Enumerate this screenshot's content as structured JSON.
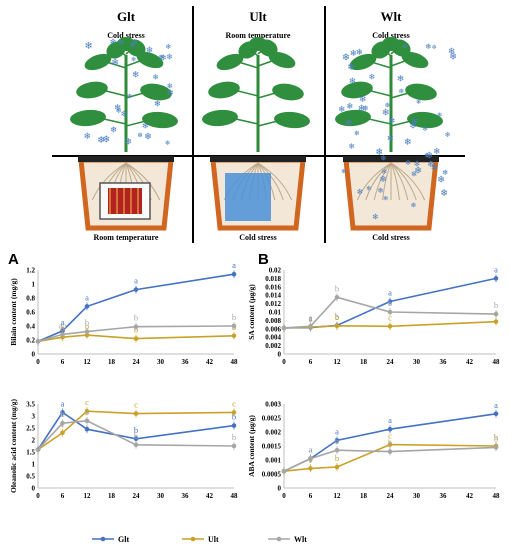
{
  "illustration": {
    "panels": [
      {
        "title": "Glt",
        "top_label": "Cold stress",
        "bottom_label": "Room temperature"
      },
      {
        "title": "Ult",
        "top_label": "Room temperature",
        "bottom_label": "Cold stress"
      },
      {
        "title": "Wlt",
        "top_label": "Cold stress",
        "bottom_label": "Cold stress"
      }
    ]
  },
  "section_labels": {
    "a": "A",
    "b": "B"
  },
  "legend": {
    "items": [
      "Glt",
      "Ult",
      "Wlt"
    ]
  },
  "colors": {
    "Glt": "#4472c4",
    "Ult": "#c9a227",
    "Wlt": "#a6a6a6"
  },
  "chart_data": [
    {
      "type": "line",
      "ylabel": "Bilain content (mg/g)",
      "x": [
        0,
        6,
        12,
        24,
        48
      ],
      "xticks": [
        "0",
        "6",
        "12",
        "18",
        "24",
        "30",
        "36",
        "42",
        "48"
      ],
      "xlim": [
        0,
        48
      ],
      "yticks": [
        "0",
        "0.2",
        "0.4",
        "0.6",
        "0.8",
        "1",
        "1.2"
      ],
      "ylim": [
        0,
        1.2
      ],
      "series": [
        {
          "name": "Glt",
          "values": [
            0.18,
            0.33,
            0.68,
            0.92,
            1.14
          ],
          "letters": [
            "",
            "a",
            "a",
            "a",
            "a"
          ]
        },
        {
          "name": "Ult",
          "values": [
            0.18,
            0.24,
            0.27,
            0.22,
            0.26
          ],
          "letters": [
            "",
            "b",
            "b",
            "b",
            "b"
          ]
        },
        {
          "name": "Wlt",
          "values": [
            0.18,
            0.28,
            0.32,
            0.39,
            0.4
          ],
          "letters": [
            "",
            "ab",
            "b",
            "b",
            "b"
          ]
        }
      ]
    },
    {
      "type": "line",
      "ylabel": "SA content (µg/g)",
      "x": [
        0,
        6,
        12,
        24,
        48
      ],
      "xticks": [
        "0",
        "6",
        "12",
        "18",
        "24",
        "30",
        "36",
        "42",
        "48"
      ],
      "xlim": [
        0,
        48
      ],
      "yticks": [
        "0",
        "0.002",
        "0.004",
        "0.006",
        "0.008",
        "0.01",
        "0.012",
        "0.014",
        "0.016",
        "0.018",
        "0.02"
      ],
      "ylim": [
        0,
        0.02
      ],
      "series": [
        {
          "name": "Glt",
          "values": [
            0.0062,
            0.0063,
            0.0068,
            0.0125,
            0.018
          ],
          "letters": [
            "",
            "a",
            "b",
            "a",
            "a"
          ]
        },
        {
          "name": "Ult",
          "values": [
            0.0062,
            0.0064,
            0.0067,
            0.0066,
            0.0077
          ],
          "letters": [
            "",
            "a",
            "b",
            "c",
            "c"
          ]
        },
        {
          "name": "Wlt",
          "values": [
            0.0062,
            0.0066,
            0.0135,
            0.01,
            0.0095
          ],
          "letters": [
            "",
            "a",
            "b",
            "b",
            "b"
          ]
        }
      ]
    },
    {
      "type": "line",
      "ylabel": "Oleanolic acid content (mg/g)",
      "x": [
        0,
        6,
        12,
        24,
        48
      ],
      "xticks": [
        "0",
        "6",
        "12",
        "18",
        "24",
        "30",
        "36",
        "42",
        "48"
      ],
      "xlim": [
        0,
        48
      ],
      "yticks": [
        "0",
        "0.5",
        "1",
        "1.5",
        "2",
        "2.5",
        "3",
        "3.5"
      ],
      "ylim": [
        0,
        3.5
      ],
      "series": [
        {
          "name": "Glt",
          "values": [
            1.6,
            3.15,
            2.45,
            2.05,
            2.6
          ],
          "letters": [
            "",
            "a",
            "a",
            "b",
            "b"
          ]
        },
        {
          "name": "Ult",
          "values": [
            1.6,
            2.3,
            3.2,
            3.1,
            3.15
          ],
          "letters": [
            "",
            "c",
            "c",
            "c",
            "c"
          ]
        },
        {
          "name": "Wlt",
          "values": [
            1.6,
            2.7,
            2.8,
            1.8,
            1.75
          ],
          "letters": [
            "",
            "b",
            "b",
            "b",
            "b"
          ]
        }
      ]
    },
    {
      "type": "line",
      "ylabel": "ABA content (µg/g)",
      "x": [
        0,
        6,
        12,
        24,
        48
      ],
      "xticks": [
        "0",
        "6",
        "12",
        "18",
        "24",
        "30",
        "36",
        "42",
        "48"
      ],
      "xlim": [
        0,
        48
      ],
      "yticks": [
        "0",
        "0.0005",
        "0.001",
        "0.0015",
        "0.002",
        "0.0025",
        "0.003"
      ],
      "ylim": [
        0,
        0.003
      ],
      "series": [
        {
          "name": "Glt",
          "values": [
            0.0006,
            0.00105,
            0.0017,
            0.0021,
            0.00265
          ],
          "letters": [
            "",
            "a",
            "a",
            "a",
            "a"
          ]
        },
        {
          "name": "Ult",
          "values": [
            0.0006,
            0.0007,
            0.00075,
            0.00155,
            0.0015
          ],
          "letters": [
            "",
            "b",
            "b",
            "c",
            "b"
          ]
        },
        {
          "name": "Wlt",
          "values": [
            0.0006,
            0.00105,
            0.00135,
            0.0013,
            0.00145
          ],
          "letters": [
            "",
            "a",
            "b",
            "b",
            "b"
          ]
        }
      ]
    }
  ]
}
